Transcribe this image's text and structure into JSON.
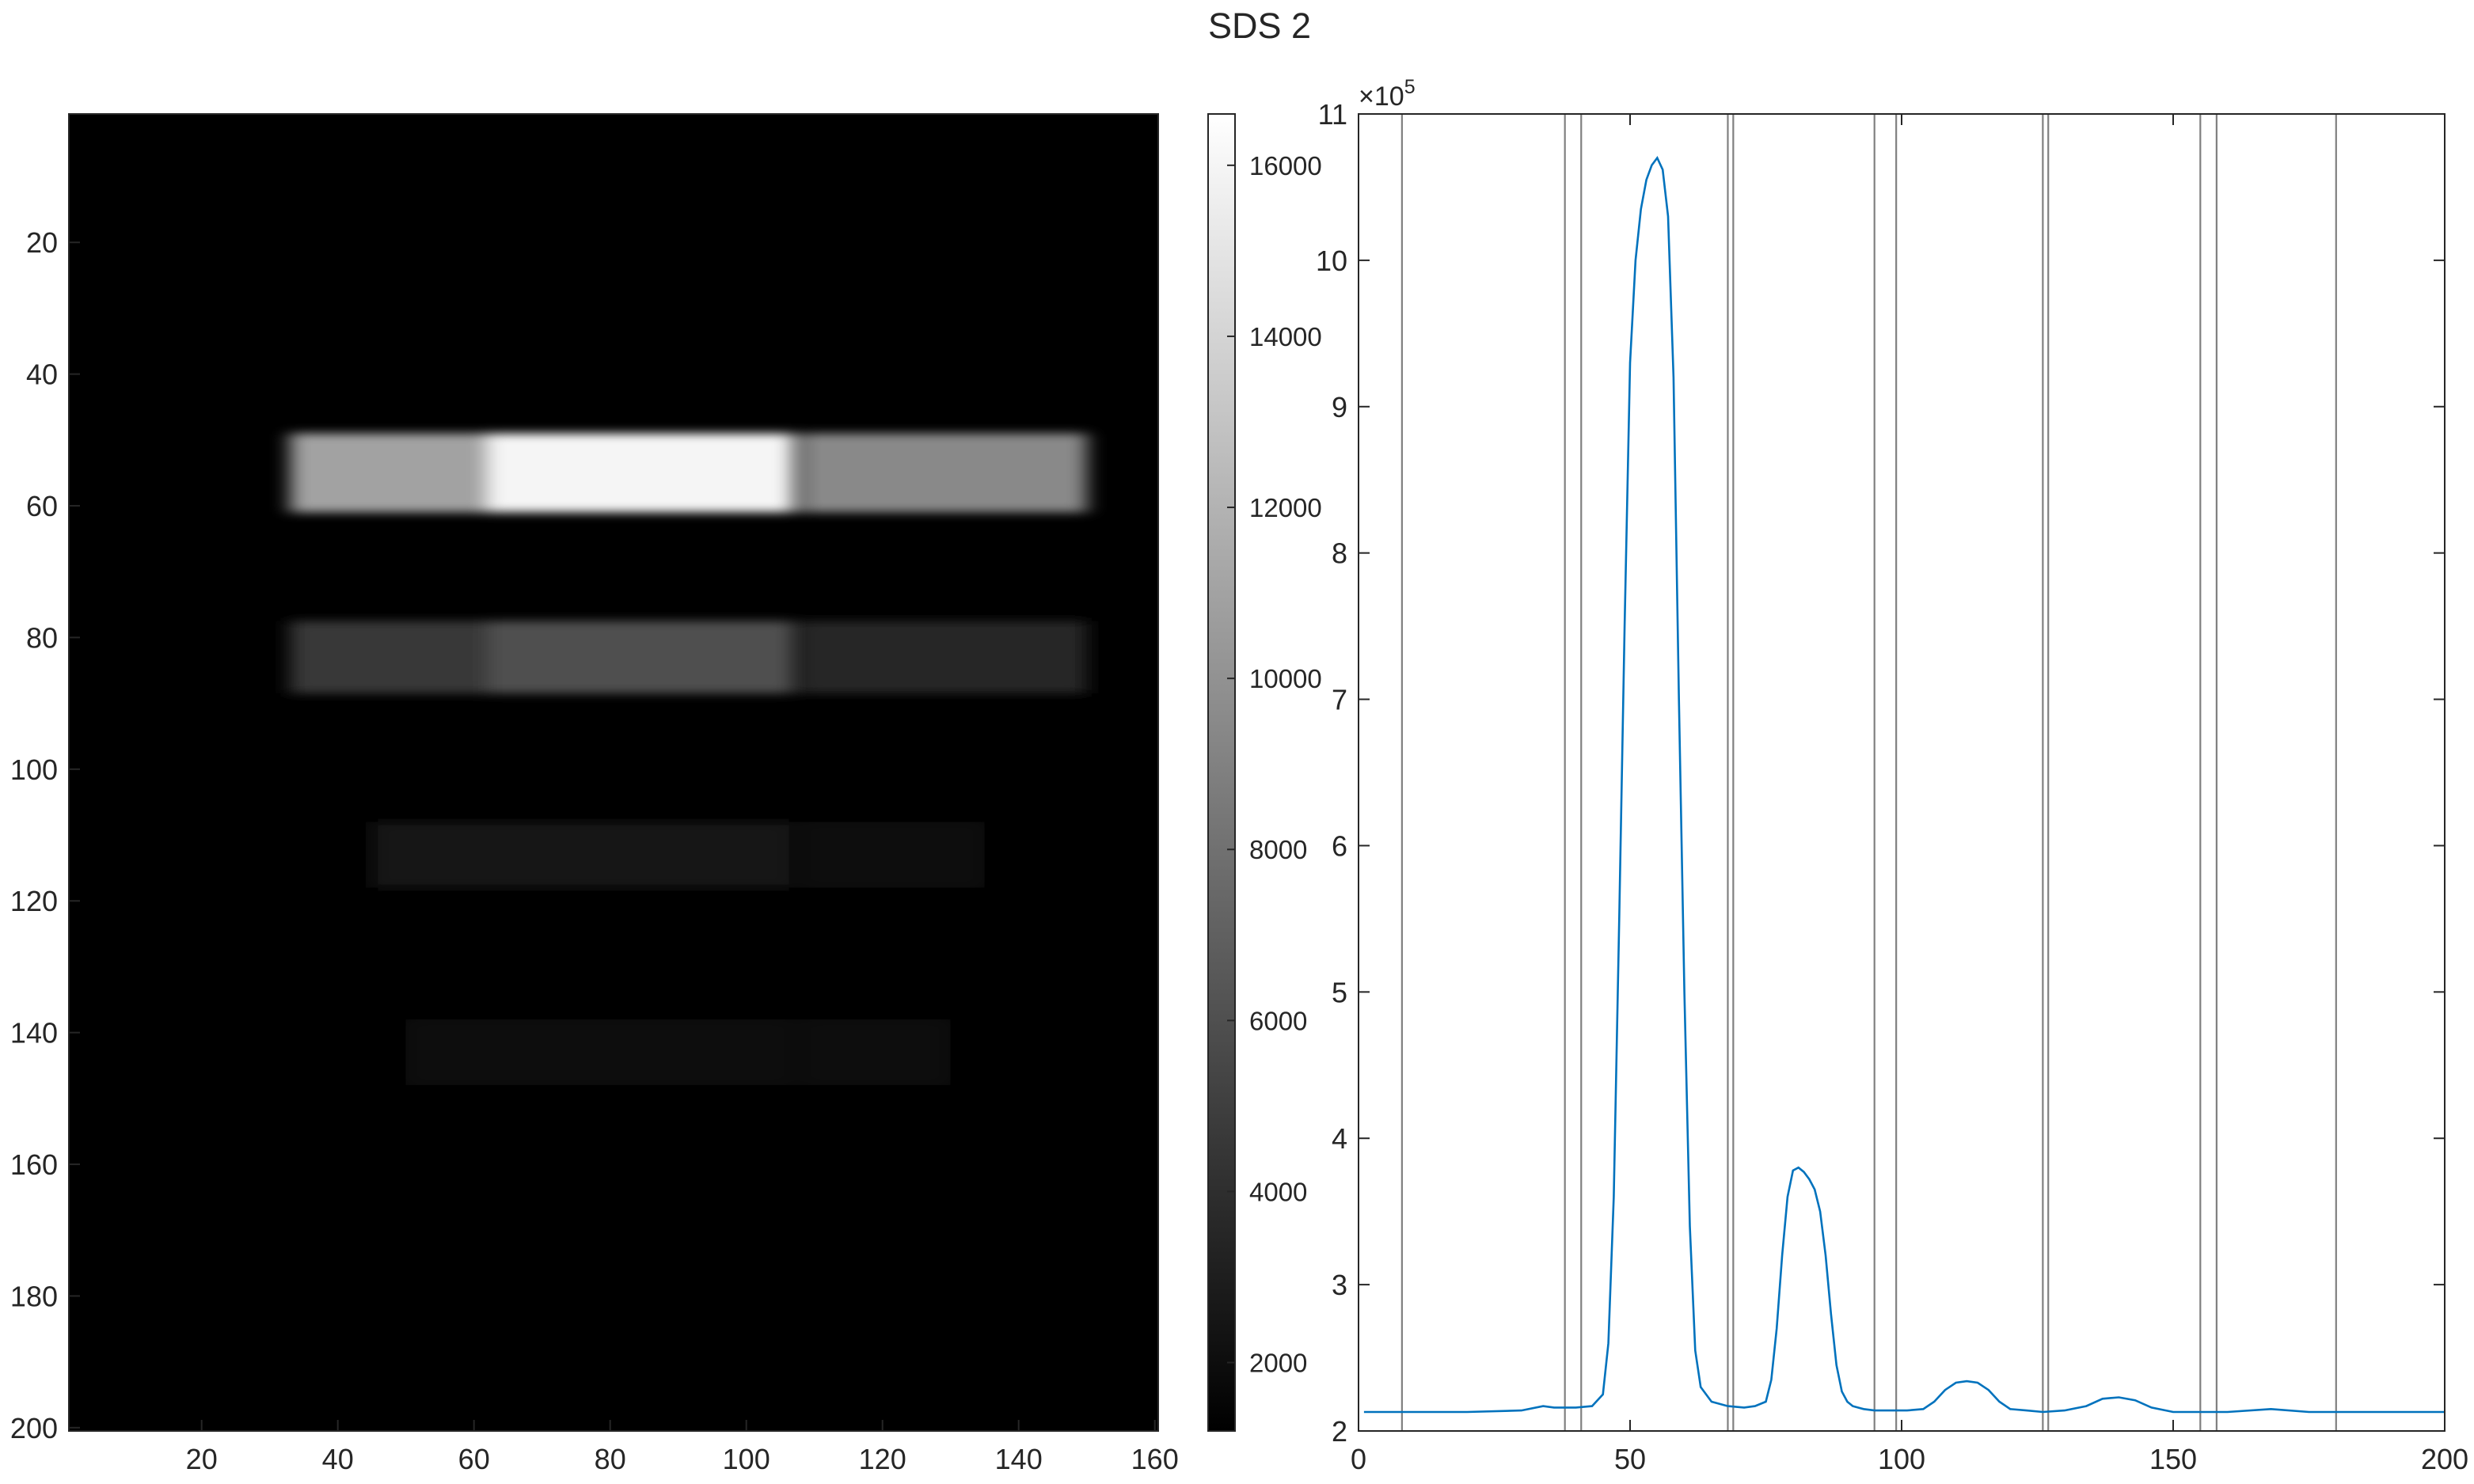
{
  "figure": {
    "title": "SDS 2"
  },
  "chart_data": [
    {
      "type": "heatmap",
      "title": "",
      "xlabel": "",
      "ylabel": "",
      "colormap": "gray",
      "xlim": [
        0.5,
        160.5
      ],
      "ylim": [
        0.5,
        200.5
      ],
      "y_direction": "reverse",
      "xticks": [
        20,
        40,
        60,
        80,
        100,
        120,
        140,
        160
      ],
      "yticks": [
        20,
        40,
        60,
        80,
        100,
        120,
        140,
        160,
        180,
        200
      ],
      "colorbar": {
        "limits": [
          1200,
          16600
        ],
        "ticks": [
          2000,
          4000,
          6000,
          8000,
          10000,
          12000,
          14000,
          16000
        ]
      },
      "background_value": 1200,
      "bands": [
        {
          "row_center": 55,
          "row_half_width": 6,
          "segments": [
            [
              33,
              62,
              11000
            ],
            [
              62,
              107,
              16000
            ],
            [
              108,
              150,
              9500
            ]
          ]
        },
        {
          "row_center": 83,
          "row_half_width": 5.5,
          "segments": [
            [
              33,
              62,
              4500
            ],
            [
              62,
              107,
              6000
            ],
            [
              108,
              150,
              3500
            ]
          ]
        },
        {
          "row_center": 113,
          "row_half_width": 5,
          "segments": [
            [
              45,
              107,
              2300
            ],
            [
              108,
              135,
              2100
            ]
          ]
        },
        {
          "row_center": 143,
          "row_half_width": 5,
          "segments": [
            [
              50,
              107,
              1900
            ],
            [
              108,
              130,
              1800
            ]
          ]
        }
      ]
    },
    {
      "type": "line",
      "title": "",
      "xlabel": "",
      "ylabel": "",
      "xlim": [
        0,
        200
      ],
      "ylim": [
        2,
        11
      ],
      "y_exponent_label": "×10",
      "y_exponent": "5",
      "xticks": [
        0,
        50,
        100,
        150,
        200
      ],
      "yticks": [
        2,
        3,
        4,
        5,
        6,
        7,
        8,
        9,
        10,
        11
      ],
      "series": [
        {
          "color": "#0072BD",
          "x": [
            1,
            10,
            20,
            30,
            34,
            36,
            40,
            43,
            45,
            46,
            47,
            48,
            49,
            50,
            51,
            52,
            53,
            54,
            55,
            56,
            57,
            58,
            59,
            60,
            61,
            62,
            63,
            65,
            68,
            71,
            73,
            75,
            76,
            77,
            78,
            79,
            80,
            81,
            82,
            83,
            84,
            85,
            86,
            87,
            88,
            89,
            90,
            91,
            93,
            95,
            98,
            101,
            104,
            106,
            108,
            110,
            112,
            114,
            116,
            118,
            120,
            123,
            126,
            130,
            134,
            137,
            140,
            143,
            146,
            150,
            155,
            160,
            168,
            175,
            185,
            200
          ],
          "y": [
            2.13,
            2.13,
            2.13,
            2.14,
            2.17,
            2.16,
            2.16,
            2.17,
            2.25,
            2.6,
            3.6,
            5.5,
            7.5,
            9.3,
            10.0,
            10.35,
            10.55,
            10.65,
            10.7,
            10.62,
            10.3,
            9.2,
            7.0,
            5.0,
            3.4,
            2.55,
            2.3,
            2.2,
            2.17,
            2.16,
            2.17,
            2.2,
            2.35,
            2.7,
            3.2,
            3.6,
            3.78,
            3.8,
            3.77,
            3.72,
            3.65,
            3.5,
            3.2,
            2.8,
            2.45,
            2.27,
            2.2,
            2.17,
            2.15,
            2.14,
            2.14,
            2.14,
            2.15,
            2.2,
            2.28,
            2.33,
            2.34,
            2.33,
            2.28,
            2.2,
            2.15,
            2.14,
            2.13,
            2.14,
            2.17,
            2.22,
            2.23,
            2.21,
            2.16,
            2.13,
            2.13,
            2.13,
            2.15,
            2.13,
            2.13,
            2.13
          ]
        }
      ],
      "vertical_lines": [
        8,
        38,
        41,
        68,
        69,
        95,
        99,
        126,
        127,
        155,
        158,
        180
      ],
      "vertical_line_color": "#808080"
    }
  ]
}
